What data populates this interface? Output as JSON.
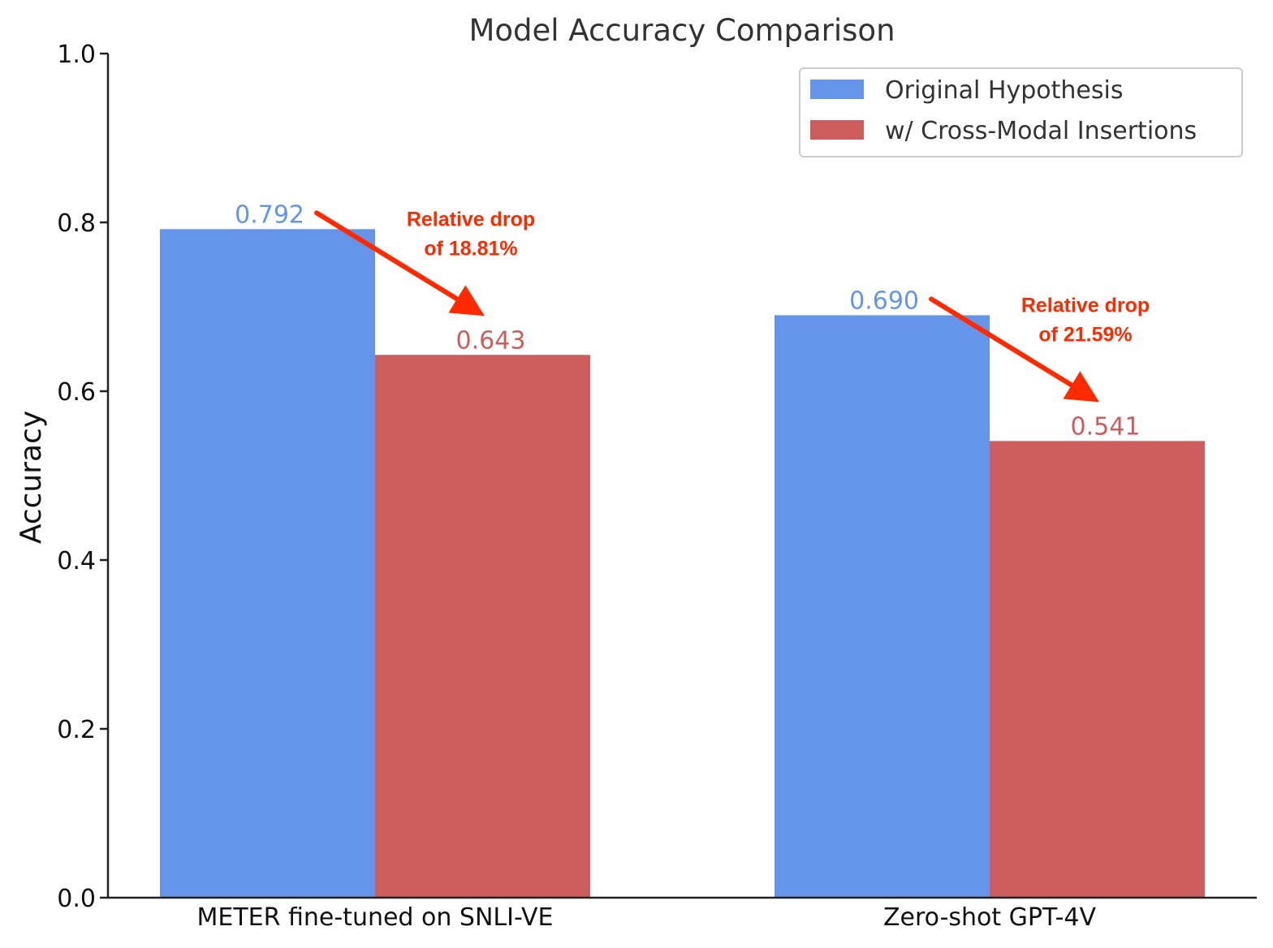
{
  "chart_data": {
    "type": "bar",
    "title": "Model Accuracy Comparison",
    "xlabel": "",
    "ylabel": "Accuracy",
    "ylim": [
      0,
      1.0
    ],
    "yticks": [
      "0.0",
      "0.2",
      "0.4",
      "0.6",
      "0.8",
      "1.0"
    ],
    "categories": [
      "METER fine-tuned on SNLI-VE",
      "Zero-shot GPT-4V"
    ],
    "series": [
      {
        "name": "Original Hypothesis",
        "values": [
          0.792,
          0.69
        ],
        "labels": [
          "0.792",
          "0.690"
        ],
        "color": "#6495ea"
      },
      {
        "name": "w/ Cross-Modal Insertions",
        "values": [
          0.643,
          0.541
        ],
        "labels": [
          "0.643",
          "0.541"
        ],
        "color": "#cd5c5c"
      }
    ],
    "annotations": [
      {
        "line1": "Relative drop",
        "line2": "of 18.81%",
        "color": "#ff2a00"
      },
      {
        "line1": "Relative drop",
        "line2": "of 21.59%",
        "color": "#ff2a00"
      }
    ],
    "legend_position": "top-right",
    "grid": false
  }
}
